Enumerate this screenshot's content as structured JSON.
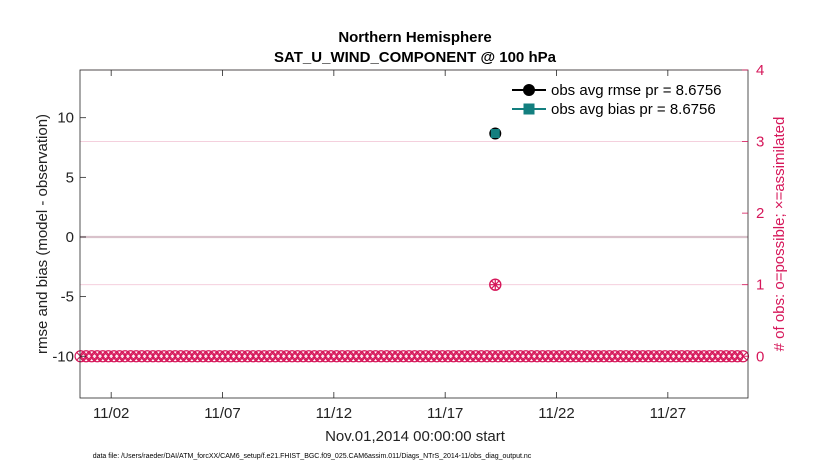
{
  "chart_data": {
    "type": "scatter",
    "title": "Northern Hemisphere",
    "subtitle": "SAT_U_WIND_COMPONENT @ 100 hPa",
    "xlabel": "Nov.01,2014 00:00:00 start",
    "ylabel_left": "rmse and bias (model - observation)",
    "ylabel_right": "# of obs: o=possible; ×=assimilated",
    "x_range": [
      0.6,
      30.6
    ],
    "ylim_left": [
      -13.5,
      14
    ],
    "ylim_right": [
      -0.58333,
      4
    ],
    "x_ticks": [
      {
        "value": 2,
        "label": "11/02"
      },
      {
        "value": 7,
        "label": "11/07"
      },
      {
        "value": 12,
        "label": "11/12"
      },
      {
        "value": 17,
        "label": "11/17"
      },
      {
        "value": 22,
        "label": "11/22"
      },
      {
        "value": 27,
        "label": "11/27"
      }
    ],
    "y_ticks_left": [
      {
        "value": 10,
        "label": "10"
      },
      {
        "value": 5,
        "label": "5"
      },
      {
        "value": 0,
        "label": "0"
      },
      {
        "value": -5,
        "label": "-5"
      },
      {
        "value": -10,
        "label": "-10"
      }
    ],
    "y_ticks_right": [
      {
        "value": 4,
        "label": "4"
      },
      {
        "value": 3,
        "label": "3"
      },
      {
        "value": 2,
        "label": "2"
      },
      {
        "value": 1,
        "label": "1"
      },
      {
        "value": 0,
        "label": "0"
      }
    ],
    "grid": {
      "horizontal_at_right_ticks": true
    },
    "legend_position": "top-right",
    "series": [
      {
        "name": "obs avg rmse pr = 8.6756",
        "color": "#000000",
        "marker": "circle",
        "points": [
          {
            "x": 19.25,
            "y": 8.6756
          }
        ]
      },
      {
        "name": "obs avg bias pr = 8.6756",
        "color": "#137f7f",
        "marker": "square",
        "points": [
          {
            "x": 19.25,
            "y": 8.6756
          }
        ]
      }
    ],
    "obs_counts": {
      "axis": "right",
      "color": "#d6175a",
      "x_start": 0.625,
      "x_end": 30.375,
      "x_step": 0.25,
      "default_possible": 0,
      "default_assimilated": 0,
      "nonzero": [
        {
          "x": 19.25,
          "possible": 1,
          "assimilated": 1
        }
      ]
    },
    "zero_line": {
      "value": 0,
      "color": "#b0a0a8"
    }
  },
  "footnote": "data file: /Users/raeder/DAI/ATM_forcXX/CAM6_setup/f.e21.FHIST_BGC.f09_025.CAM6assim.011/Diags_NTrS_2014-11/obs_diag_output.nc"
}
